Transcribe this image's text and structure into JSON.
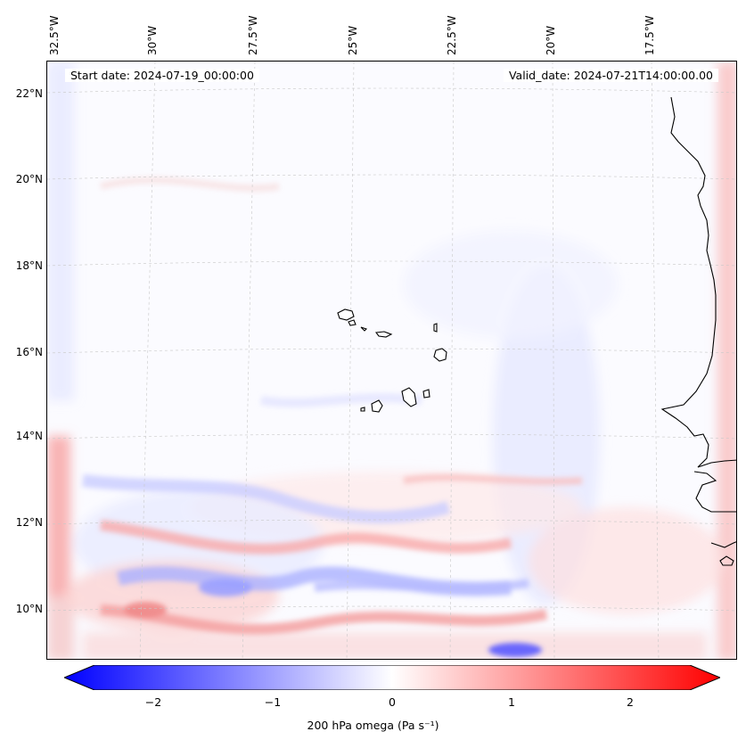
{
  "map": {
    "lon_labels": [
      "32.5°W",
      "30°W",
      "27.5°W",
      "25°W",
      "22.5°W",
      "20°W",
      "17.5°W"
    ],
    "lat_labels": [
      "22°N",
      "20°N",
      "18°N",
      "16°N",
      "14°N",
      "12°N",
      "10°N"
    ],
    "start_date": "Start date: 2024-07-19_00:00:00",
    "valid_date": "Valid_date: 2024-07-21T14:00:00.00",
    "land_color": "#000000",
    "positive_color": "#ff0000",
    "negative_color": "#0000ff"
  },
  "colorbar": {
    "label": "200 hPa omega (Pa s⁻¹)",
    "ticks": [
      "−2",
      "−1",
      "0",
      "1",
      "2"
    ],
    "tick_values": [
      -2,
      -1,
      0,
      1,
      2
    ],
    "range": [
      -2.6,
      2.6
    ],
    "extend": "both",
    "colormap": "bwr"
  }
}
